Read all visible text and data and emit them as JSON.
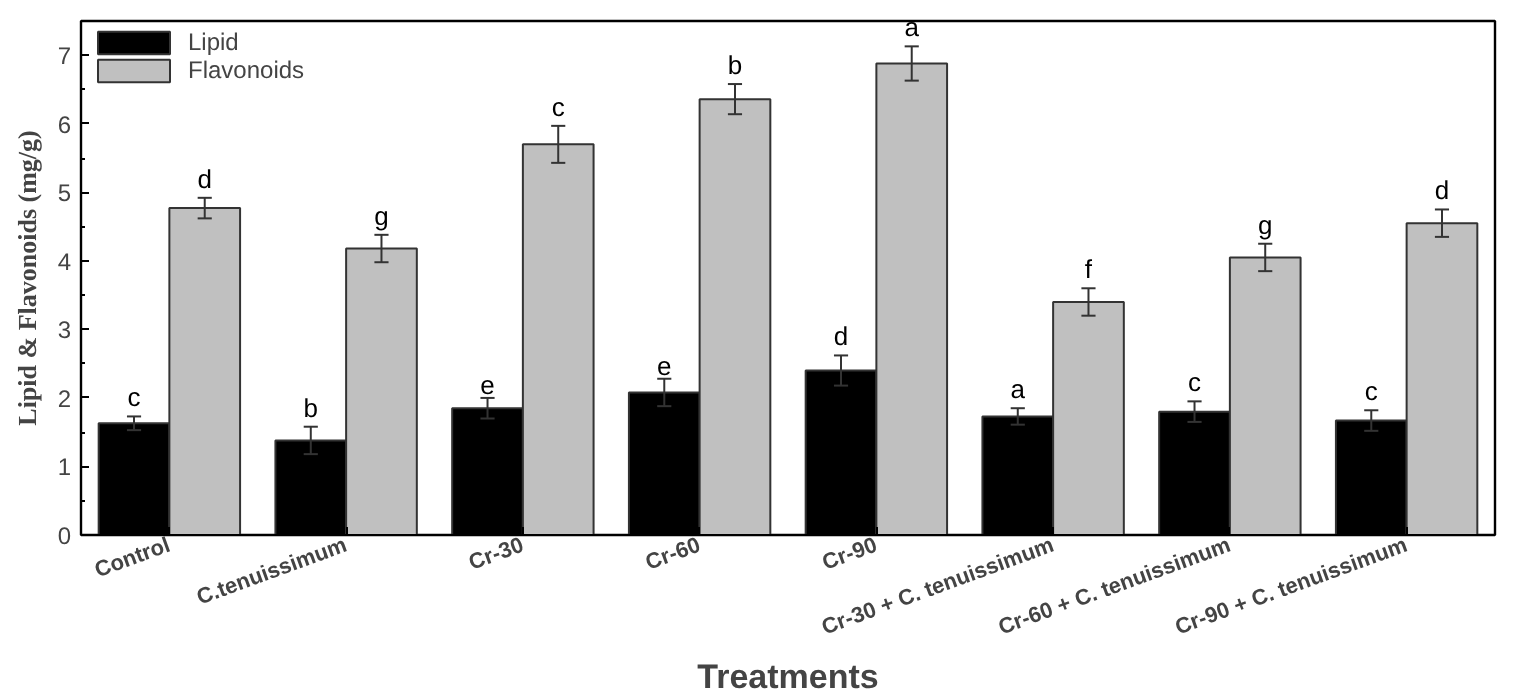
{
  "chart_data": {
    "type": "bar",
    "xlabel": "Treatments",
    "ylabel": "Lipid & Flavonoids (mg/g)",
    "categories": [
      "Control",
      "C.tenuissimum",
      "Cr-30",
      "Cr-60",
      "Cr-90",
      "Cr-30 + C. tenuissimum",
      "Cr-60 + C. tenuissimum",
      "Cr-90 + C. tenuissimum"
    ],
    "series": [
      {
        "name": "Lipid",
        "color": "#000000",
        "values": [
          1.63,
          1.38,
          1.85,
          2.08,
          2.4,
          1.73,
          1.8,
          1.67
        ],
        "errors": [
          0.1,
          0.2,
          0.15,
          0.2,
          0.22,
          0.12,
          0.15,
          0.15
        ],
        "value_labels": [
          "c",
          "b",
          "e",
          "e",
          "d",
          "a",
          "c",
          "c"
        ]
      },
      {
        "name": "Flavonoids",
        "color": "#c0c0c0",
        "values": [
          4.77,
          4.18,
          5.7,
          6.36,
          6.88,
          3.4,
          4.05,
          4.55
        ],
        "errors": [
          0.15,
          0.2,
          0.27,
          0.22,
          0.25,
          0.2,
          0.2,
          0.2
        ],
        "value_labels": [
          "d",
          "g",
          "c",
          "b",
          "a",
          "f",
          "g",
          "d"
        ]
      }
    ],
    "ylim": [
      0,
      7.5
    ],
    "yticks": [
      0,
      1,
      2,
      3,
      4,
      5,
      6,
      7
    ],
    "grid": false,
    "legend": "top left"
  }
}
